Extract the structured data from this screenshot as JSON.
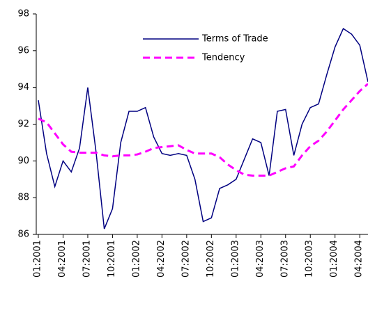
{
  "chart_data": {
    "type": "line",
    "categories": [
      "01:2001",
      null,
      null,
      "04:2001",
      null,
      null,
      "07:2001",
      null,
      null,
      "10:2001",
      null,
      null,
      "01:2002",
      null,
      null,
      "04:2002",
      null,
      null,
      "07:2002",
      null,
      null,
      "10:2002",
      null,
      null,
      "01:2003",
      null,
      null,
      "04:2003",
      null,
      null,
      "07:2003",
      null,
      null,
      "10:2003",
      null,
      null,
      "01:2004",
      null,
      null,
      "04:2004",
      null
    ],
    "series": [
      {
        "name": "Terms of Trade",
        "color": "#000080",
        "dash": false,
        "values": [
          93.3,
          90.4,
          88.6,
          90.0,
          89.4,
          90.7,
          94.0,
          90.5,
          86.3,
          87.4,
          91.0,
          92.7,
          92.7,
          92.9,
          91.3,
          90.4,
          90.3,
          90.4,
          90.3,
          89.0,
          86.7,
          86.9,
          88.5,
          88.7,
          89.0,
          90.1,
          91.2,
          91.0,
          89.2,
          92.7,
          92.8,
          90.3,
          92.0,
          92.9,
          93.1,
          94.7,
          96.2,
          97.2,
          96.9,
          96.3,
          94.3
        ]
      },
      {
        "name": "Tendency",
        "color": "#ff00ff",
        "dash": true,
        "values": [
          92.3,
          92.1,
          91.5,
          90.9,
          90.5,
          90.45,
          90.45,
          90.45,
          90.3,
          90.25,
          90.3,
          90.3,
          90.35,
          90.5,
          90.7,
          90.75,
          90.8,
          90.85,
          90.6,
          90.4,
          90.4,
          90.4,
          90.2,
          89.8,
          89.5,
          89.25,
          89.2,
          89.2,
          89.2,
          89.4,
          89.6,
          89.7,
          90.3,
          90.8,
          91.1,
          91.6,
          92.2,
          92.8,
          93.3,
          93.8,
          94.2
        ]
      }
    ],
    "ylim": [
      86,
      98
    ],
    "yticks": [
      86,
      88,
      90,
      92,
      94,
      96,
      98
    ],
    "grid": false,
    "legend": "top-right"
  }
}
